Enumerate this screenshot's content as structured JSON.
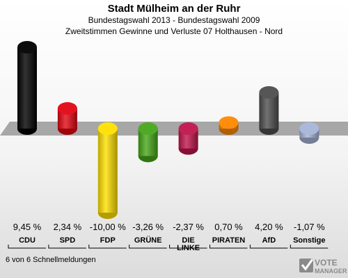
{
  "header": {
    "title": "Stadt Mülheim an der Ruhr",
    "subtitle": "Bundestagswahl 2013 - Bundestagswahl 2009",
    "subtitle2": "Zweitstimmen Gewinne und Verluste 07 Holthausen - Nord"
  },
  "chart_data": {
    "type": "bar",
    "categories": [
      "CDU",
      "SPD",
      "FDP",
      "GRÜNE",
      "DIE LINKE",
      "PIRATEN",
      "AfD",
      "Sonstige"
    ],
    "category_lines": [
      [
        "CDU"
      ],
      [
        "SPD"
      ],
      [
        "FDP"
      ],
      [
        "GRÜNE"
      ],
      [
        "DIE",
        "LINKE"
      ],
      [
        "PIRATEN"
      ],
      [
        "AfD"
      ],
      [
        "Sonstige"
      ]
    ],
    "values": [
      9.45,
      2.34,
      -10.0,
      -3.26,
      -2.37,
      0.7,
      4.2,
      -1.07
    ],
    "value_labels": [
      "9,45 %",
      "2,34 %",
      "-10,00 %",
      "-3,26 %",
      "-2,37 %",
      "0,70 %",
      "4,20 %",
      "-1,07 %"
    ],
    "colors": [
      "#000000",
      "#e30613",
      "#ffe000",
      "#46a719",
      "#c0154c",
      "#ff8800",
      "#4d4d4d",
      "#a6b4d8"
    ],
    "ylim": [
      -10,
      9.45
    ]
  },
  "footer": {
    "text": "6 von 6 Schnellmeldungen"
  },
  "watermark": {
    "line1": "VOTE",
    "line2": "MANAGER"
  }
}
